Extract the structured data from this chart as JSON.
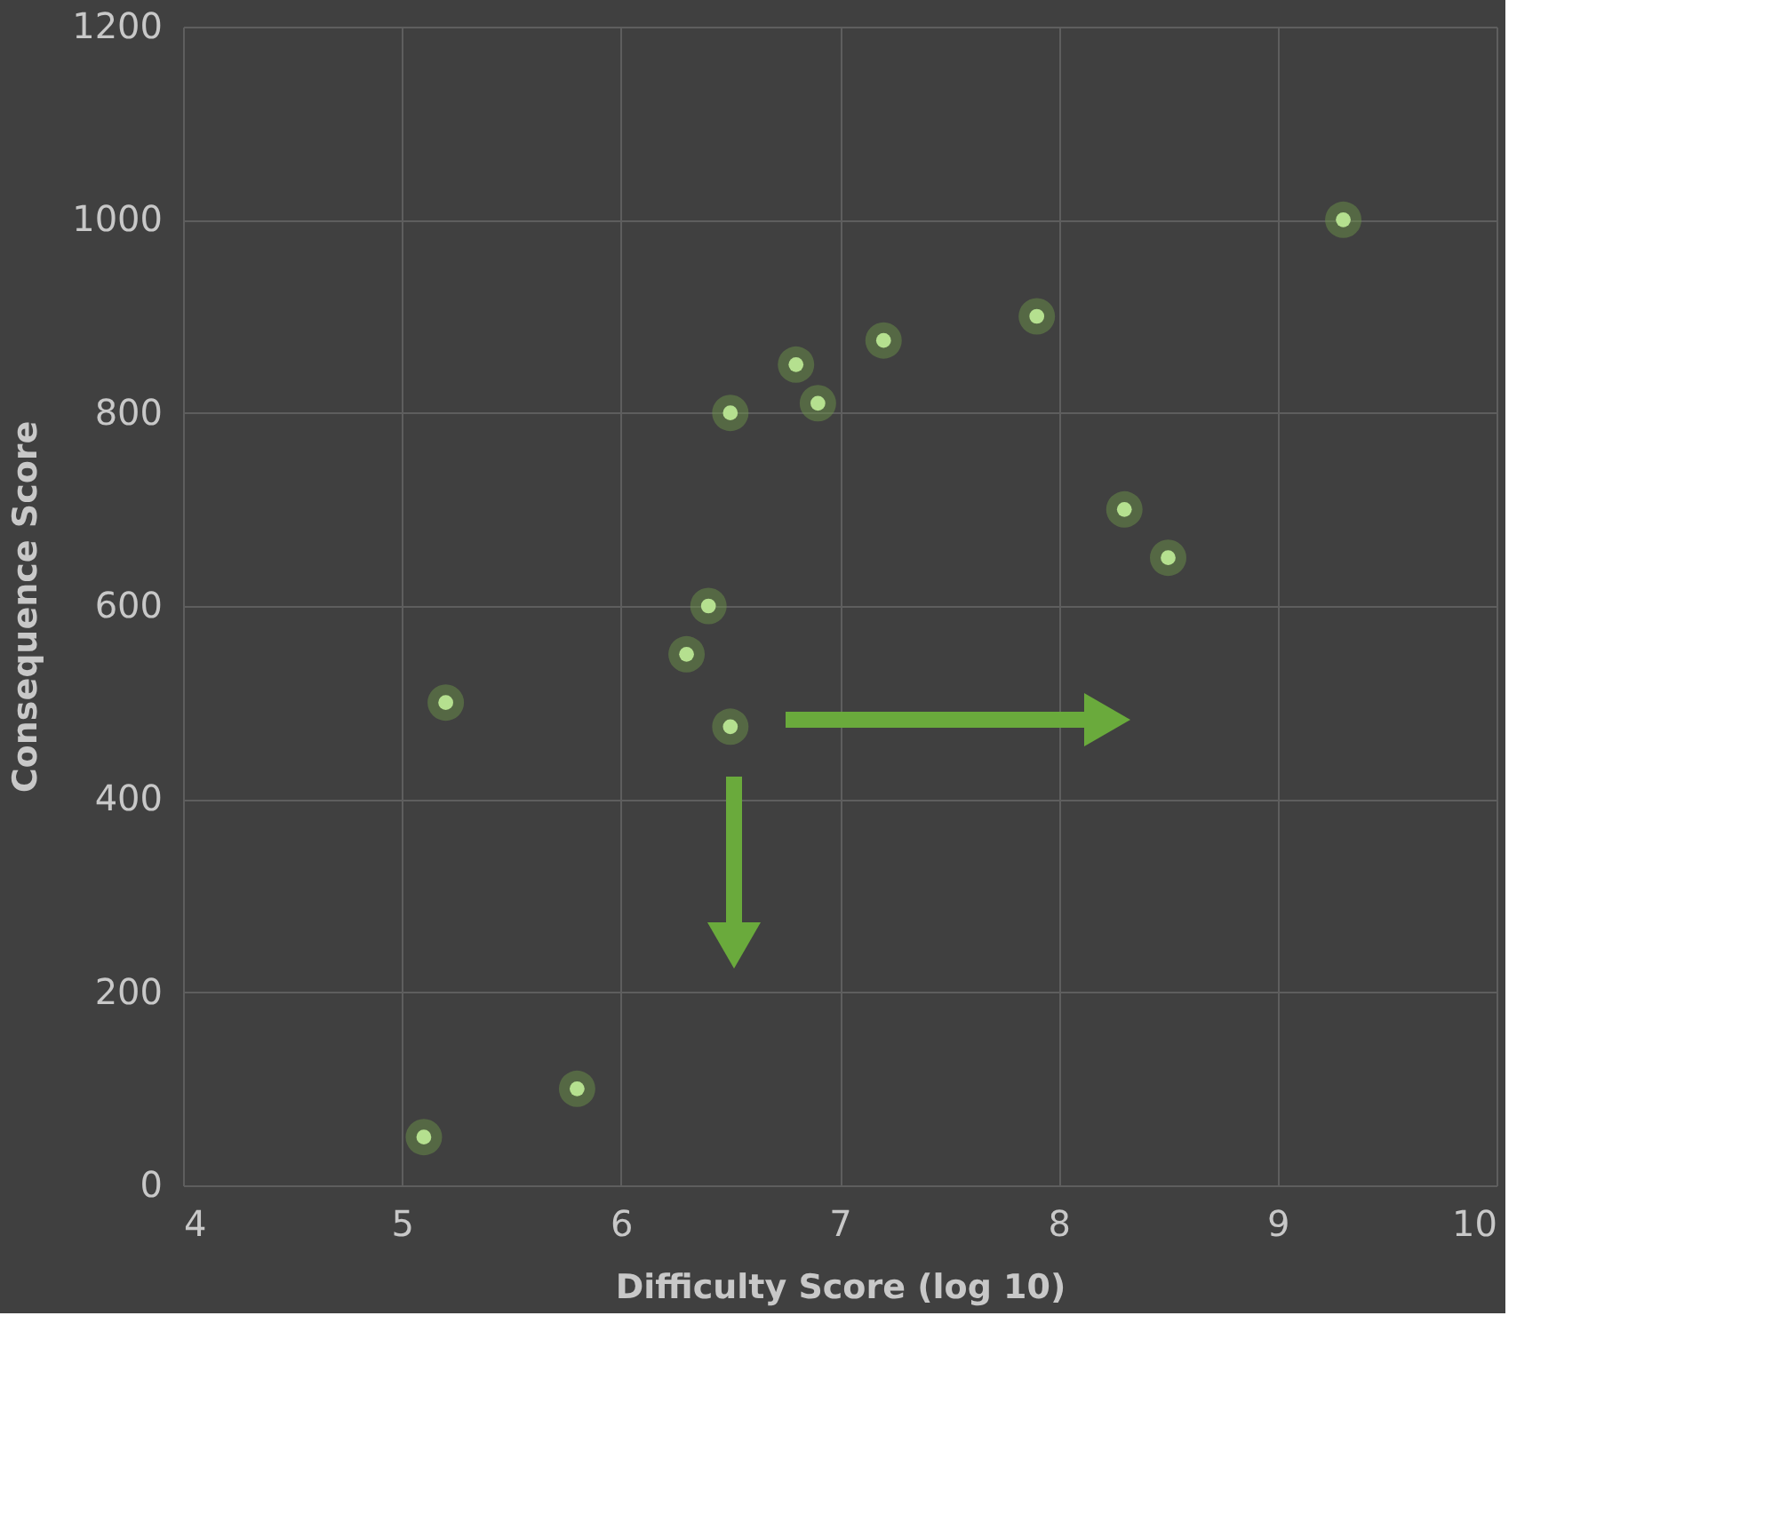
{
  "chart_data": {
    "type": "scatter",
    "xlabel": "Difficulty Score (log 10)",
    "ylabel": "Consequence Score",
    "x": [
      5.1,
      5.8,
      5.2,
      6.3,
      6.4,
      6.5,
      6.5,
      6.8,
      6.9,
      7.2,
      7.9,
      8.3,
      8.5,
      9.3
    ],
    "series": [
      {
        "color": "#b5e08f",
        "values": [
          50,
          100,
          500,
          550,
          600,
          475,
          800,
          850,
          810,
          875,
          900,
          700,
          650,
          1000
        ]
      }
    ],
    "xlim": [
      4,
      10
    ],
    "xticks": [
      4,
      5,
      6,
      7,
      8,
      9,
      10
    ],
    "ylim": [
      0,
      1200
    ],
    "yticks": [
      0,
      200,
      400,
      600,
      800,
      1000,
      1200
    ],
    "grid": true,
    "marker": "circle"
  }
}
